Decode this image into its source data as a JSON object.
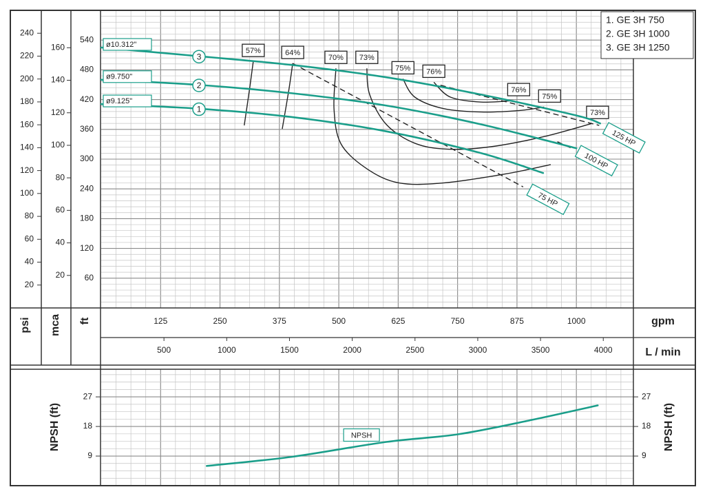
{
  "chart_data": [
    {
      "type": "line",
      "xlabel": "gpm",
      "xlim": [
        0,
        1120
      ],
      "xticks": [
        125,
        250,
        375,
        500,
        625,
        750,
        875,
        1000
      ],
      "x2label": "L / min",
      "x2lim": [
        0,
        4240
      ],
      "x2ticks": [
        500,
        1000,
        1500,
        2000,
        2500,
        3000,
        3500,
        4000
      ],
      "ylabel": "ft",
      "ylim": [
        0,
        600
      ],
      "yticks": [
        60,
        120,
        180,
        240,
        300,
        360,
        420,
        480,
        540
      ],
      "y2label": "mca",
      "y2lim": [
        0,
        183
      ],
      "y2ticks": [
        20,
        40,
        60,
        80,
        100,
        120,
        140,
        160
      ],
      "y3label": "psi",
      "y3lim": [
        0,
        260
      ],
      "y3ticks": [
        20,
        40,
        60,
        80,
        100,
        120,
        140,
        160,
        180,
        200,
        220,
        240
      ],
      "grid": true,
      "legend": "upper right",
      "series": [
        {
          "name": "1. GE 3H 750",
          "number": "1",
          "diameter": "ø9.125\"",
          "color": "#1a9e8a",
          "x": [
            0,
            200,
            400,
            600,
            800,
            930
          ],
          "values": [
            411,
            402,
            385,
            356,
            312,
            272
          ]
        },
        {
          "name": "2. GE 3H 1000",
          "number": "2",
          "diameter": "ø9.750\"",
          "color": "#1a9e8a",
          "x": [
            0,
            200,
            400,
            600,
            800,
            1000
          ],
          "values": [
            460,
            450,
            433,
            408,
            370,
            322
          ]
        },
        {
          "name": "3. GE 3H 1250",
          "number": "3",
          "diameter": "ø10.312\"",
          "color": "#1a9e8a",
          "x": [
            0,
            200,
            400,
            600,
            800,
            1000,
            1050
          ],
          "values": [
            525,
            508,
            490,
            465,
            430,
            388,
            372
          ]
        }
      ],
      "efficiency_color": "#222",
      "efficiency": [
        {
          "name": "57%",
          "label_ends": [
            "start"
          ],
          "x": [
            320,
            312,
            301
          ],
          "values": [
            497,
            440,
            368
          ]
        },
        {
          "name": "64%",
          "label_ends": [
            "start"
          ],
          "x": [
            403,
            395,
            381
          ],
          "values": [
            493,
            440,
            361
          ]
        },
        {
          "name": "70%",
          "label_ends": [
            "start"
          ],
          "x": [
            494,
            490,
            505,
            560,
            627,
            720,
            850,
            946
          ],
          "values": [
            483,
            400,
            330,
            280,
            252,
            252,
            270,
            289
          ]
        },
        {
          "name": "73%",
          "label_ends": [
            "start",
            "end"
          ],
          "x": [
            559,
            565,
            600,
            660,
            730,
            820,
            930,
            1033
          ],
          "values": [
            483,
            430,
            370,
            332,
            320,
            325,
            345,
            372
          ]
        },
        {
          "name": "75%",
          "label_ends": [
            "start",
            "end"
          ],
          "x": [
            635,
            660,
            720,
            800,
            880,
            932
          ],
          "values": [
            462,
            425,
            402,
            395,
            398,
            405
          ]
        },
        {
          "name": "76%",
          "label_ends": [
            "start",
            "end"
          ],
          "x": [
            700,
            735,
            800,
            867
          ],
          "values": [
            455,
            425,
            415,
            418
          ]
        }
      ],
      "power_color": "#222",
      "power": [
        {
          "name": "75 HP",
          "dashed": true,
          "x": [
            403,
            888
          ],
          "values": [
            493,
            244
          ]
        },
        {
          "name": "100 HP",
          "dashed": true,
          "x": [
            960,
            990
          ],
          "values": [
            335,
            322
          ]
        },
        {
          "name": "125 HP",
          "dashed": true,
          "x": [
            714,
            1048
          ],
          "values": [
            449,
            368
          ]
        }
      ]
    },
    {
      "type": "line",
      "ylabel": "NPSH (ft)",
      "xlim": [
        0,
        1120
      ],
      "ylim": [
        0,
        35.4
      ],
      "yticks": [
        9,
        18,
        27
      ],
      "grid": true,
      "series": [
        {
          "name": "NPSH",
          "color": "#1a9e8a",
          "x": [
            222,
            400,
            600,
            750,
            900,
            1045
          ],
          "values": [
            6.0,
            8.75,
            13.3,
            15.6,
            19.8,
            24.4
          ]
        }
      ]
    }
  ]
}
